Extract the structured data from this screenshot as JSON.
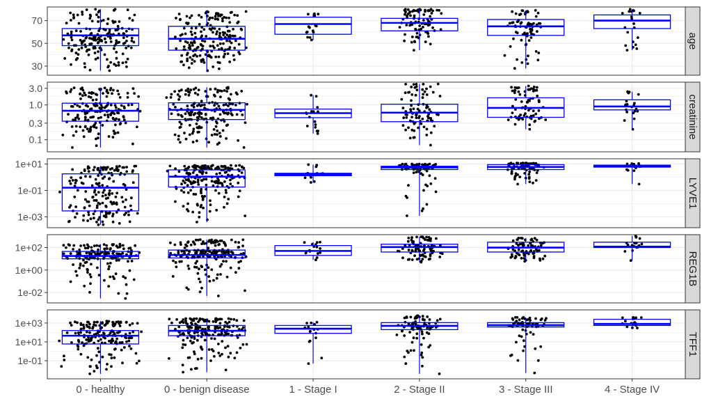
{
  "chart_data": {
    "type": "boxplot",
    "layout": "faceted rows, shared x-axis, free log/linear y-scales",
    "categories": [
      "0 - healthy",
      "0 - benign disease",
      "1 - Stage I",
      "2 - Stage II",
      "3 - Stage III",
      "4 - Stage IV"
    ],
    "colors": {
      "box": "#0000ff",
      "points": "#000000",
      "strip_bg": "#d9d9d9",
      "grid": "#ebebeb",
      "panel_border": "#333333"
    },
    "grid": true,
    "panels": [
      {
        "strip": "age",
        "scale": "linear",
        "ylim": [
          22,
          82
        ],
        "ticks": [
          {
            "v": 30,
            "label": "30"
          },
          {
            "v": 50,
            "label": "50"
          },
          {
            "v": 70,
            "label": "70"
          }
        ],
        "groups": [
          {
            "q1": 48,
            "median": 57,
            "q3": 63,
            "min": 26,
            "max": 80,
            "n": 180
          },
          {
            "q1": 44,
            "median": 54,
            "q3": 65,
            "min": 26,
            "max": 78,
            "n": 200
          },
          {
            "q1": 58,
            "median": 67,
            "q3": 73,
            "min": 53,
            "max": 76,
            "n": 16
          },
          {
            "q1": 61,
            "median": 68,
            "q3": 72,
            "min": 44,
            "max": 80,
            "n": 90
          },
          {
            "q1": 57,
            "median": 65,
            "q3": 71,
            "min": 28,
            "max": 79,
            "n": 75
          },
          {
            "q1": 63,
            "median": 70,
            "q3": 75,
            "min": 44,
            "max": 80,
            "n": 20
          }
        ]
      },
      {
        "strip": "creatinine",
        "scale": "log10",
        "ylim": [
          0.045,
          4.5
        ],
        "ticks": [
          {
            "v": 0.1,
            "label": "0.1"
          },
          {
            "v": 0.3,
            "label": "0.3"
          },
          {
            "v": 1.0,
            "label": "1.0"
          },
          {
            "v": 3.0,
            "label": "3.0"
          }
        ],
        "groups": [
          {
            "q1": 0.34,
            "median": 0.68,
            "q3": 1.12,
            "min": 0.06,
            "max": 3.1,
            "n": 180
          },
          {
            "q1": 0.38,
            "median": 0.72,
            "q3": 1.15,
            "min": 0.06,
            "max": 3.2,
            "n": 200
          },
          {
            "q1": 0.43,
            "median": 0.58,
            "q3": 0.76,
            "min": 0.15,
            "max": 1.9,
            "n": 16
          },
          {
            "q1": 0.33,
            "median": 0.6,
            "q3": 1.05,
            "min": 0.07,
            "max": 4.0,
            "n": 90
          },
          {
            "q1": 0.44,
            "median": 0.82,
            "q3": 1.6,
            "min": 0.2,
            "max": 3.5,
            "n": 75
          },
          {
            "q1": 0.72,
            "median": 0.9,
            "q3": 1.4,
            "min": 0.2,
            "max": 2.4,
            "n": 20
          }
        ]
      },
      {
        "strip": "LYVE1",
        "scale": "log10",
        "ylim": [
          0.00015,
          25
        ],
        "ticks": [
          {
            "v": 0.001,
            "label": "1e-03"
          },
          {
            "v": 0.1,
            "label": "1e-01"
          },
          {
            "v": 10,
            "label": "1e+01"
          }
        ],
        "groups": [
          {
            "q1": 0.0028,
            "median": 0.16,
            "q3": 1.8,
            "min": 0.00025,
            "max": 7.0,
            "n": 180
          },
          {
            "q1": 0.18,
            "median": 1.1,
            "q3": 3.6,
            "min": 0.0004,
            "max": 8.0,
            "n": 200
          },
          {
            "q1": 1.3,
            "median": 1.6,
            "q3": 2.0,
            "min": 0.4,
            "max": 9.0,
            "n": 16
          },
          {
            "q1": 3.8,
            "median": 5.5,
            "q3": 6.8,
            "min": 0.0012,
            "max": 10.0,
            "n": 90
          },
          {
            "q1": 3.8,
            "median": 6.0,
            "q3": 9.0,
            "min": 0.3,
            "max": 12.0,
            "n": 75
          },
          {
            "q1": 5.8,
            "median": 7.0,
            "q3": 8.2,
            "min": 0.3,
            "max": 11.0,
            "n": 20
          }
        ]
      },
      {
        "strip": "REG1B",
        "scale": "log10",
        "ylim": [
          0.0012,
          1400
        ],
        "ticks": [
          {
            "v": 0.01,
            "label": "1e-02"
          },
          {
            "v": 1,
            "label": "1e+00"
          },
          {
            "v": 100,
            "label": "1e+02"
          }
        ],
        "groups": [
          {
            "q1": 10,
            "median": 18,
            "q3": 45,
            "min": 0.003,
            "max": 200,
            "n": 180
          },
          {
            "q1": 12,
            "median": 22,
            "q3": 60,
            "min": 0.005,
            "max": 500,
            "n": 200
          },
          {
            "q1": 20,
            "median": 50,
            "q3": 150,
            "min": 8,
            "max": 300,
            "n": 16
          },
          {
            "q1": 40,
            "median": 110,
            "q3": 200,
            "min": 5,
            "max": 900,
            "n": 90
          },
          {
            "q1": 40,
            "median": 100,
            "q3": 300,
            "min": 6,
            "max": 700,
            "n": 75
          },
          {
            "q1": 100,
            "median": 120,
            "q3": 300,
            "min": 7,
            "max": 1100,
            "n": 20
          }
        ]
      },
      {
        "strip": "TFF1",
        "scale": "log10",
        "ylim": [
          0.0012,
          25000
        ],
        "ticks": [
          {
            "v": 0.1,
            "label": "1e-01"
          },
          {
            "v": 10,
            "label": "1e+01"
          },
          {
            "v": 1000,
            "label": "1e+03"
          }
        ],
        "groups": [
          {
            "q1": 6,
            "median": 45,
            "q3": 160,
            "min": 0.004,
            "max": 1600,
            "n": 180
          },
          {
            "q1": 45,
            "median": 150,
            "q3": 550,
            "min": 0.006,
            "max": 3000,
            "n": 200
          },
          {
            "q1": 80,
            "median": 250,
            "q3": 550,
            "min": 0.05,
            "max": 1200,
            "n": 16
          },
          {
            "q1": 200,
            "median": 500,
            "q3": 1100,
            "min": 0.004,
            "max": 6000,
            "n": 90
          },
          {
            "q1": 380,
            "median": 600,
            "q3": 1100,
            "min": 0.005,
            "max": 4000,
            "n": 75
          },
          {
            "q1": 550,
            "median": 800,
            "q3": 2500,
            "min": 300,
            "max": 4000,
            "n": 20
          }
        ]
      }
    ]
  }
}
